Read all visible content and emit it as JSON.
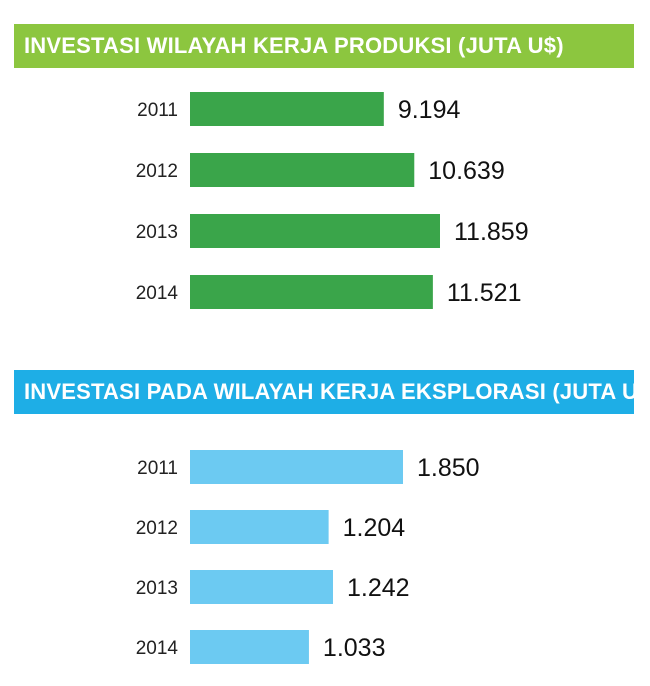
{
  "colors": {
    "production_accent": "#8cc63f",
    "production_bar": "#3aa54a",
    "exploration_accent": "#1eaee6",
    "exploration_bar": "#6ccaf2"
  },
  "chart_data": [
    {
      "type": "bar",
      "orientation": "horizontal",
      "title": "INVESTASI WILAYAH KERJA PRODUKSI (JUTA U$)",
      "categories": [
        "2011",
        "2012",
        "2013",
        "2014"
      ],
      "values": [
        9194,
        10639,
        11859,
        11521
      ],
      "value_labels": [
        "9.194",
        "10.639",
        "11.859",
        "11.521"
      ]
    },
    {
      "type": "bar",
      "orientation": "horizontal",
      "title": "INVESTASI PADA WILAYAH KERJA EKSPLORASI (JUTA U$)",
      "categories": [
        "2011",
        "2012",
        "2013",
        "2014"
      ],
      "values": [
        1850,
        1204,
        1242,
        1033
      ],
      "value_labels": [
        "1.850",
        "1.204",
        "1.242",
        "1.033"
      ]
    }
  ]
}
